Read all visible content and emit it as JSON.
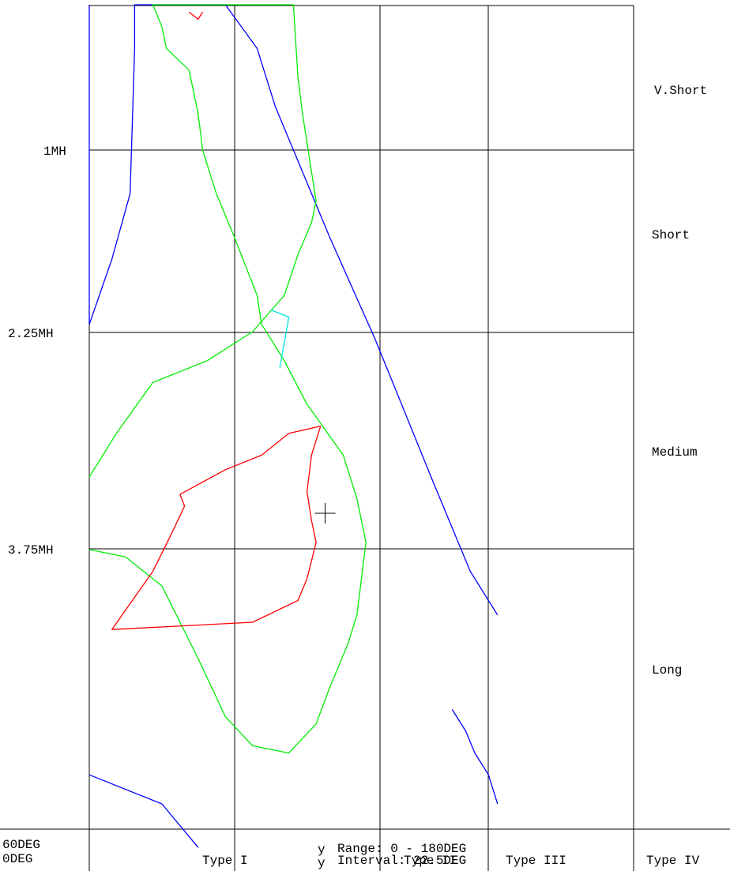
{
  "chart_data": {
    "type": "contour",
    "title": "",
    "x_axis": {
      "range_deg": [
        60,
        0
      ],
      "gridlines": [
        60,
        45,
        30,
        15,
        0
      ],
      "categories": [
        "Type I",
        "Type II",
        "Type III",
        "Type IV"
      ]
    },
    "y_axis": {
      "range_mh": [
        0,
        5
      ],
      "gridlines": [
        1,
        2.25,
        3.75
      ],
      "categories": [
        "V.Short",
        "Short",
        "Medium",
        "Long"
      ]
    },
    "ticks": {
      "x_left": [
        "60DEG",
        "0DEG"
      ],
      "y": [
        "1MH",
        "2.25MH",
        "3.75MH"
      ]
    },
    "legend_lines": [
      {
        "symbol": "y",
        "text": "Range:  0 - 180DEG"
      },
      {
        "symbol": "y",
        "text": "Interval:  22.5DEG"
      }
    ],
    "center_marker": {
      "x_deg": 34,
      "y_mh": 3.5
    },
    "contour_colors": {
      "level_1": "#0000ff",
      "level_2": "#00ee00",
      "level_3": "#ff0000",
      "level_4": "#00e5e5"
    },
    "series": [
      {
        "level": "level_1",
        "points": [
          [
            60,
            0
          ],
          [
            60,
            2.2
          ],
          [
            57.5,
            1.75
          ],
          [
            55.5,
            1.3
          ],
          [
            55,
            0.3
          ],
          [
            55,
            0
          ],
          [
            45,
            0
          ],
          [
            41.5,
            0.3
          ],
          [
            39.5,
            0.7
          ],
          [
            37.5,
            1
          ],
          [
            33.5,
            1.6
          ],
          [
            28.5,
            2.3
          ],
          [
            22,
            3.3
          ],
          [
            18,
            3.9
          ],
          [
            15,
            4.2
          ]
        ]
      },
      {
        "level": "level_1",
        "points": [
          [
            60,
            5.3
          ],
          [
            52,
            5.5
          ],
          [
            48,
            5.8
          ]
        ]
      },
      {
        "level": "level_1",
        "points": [
          [
            15,
            5.5
          ],
          [
            16,
            5.3
          ],
          [
            17.5,
            5.15
          ],
          [
            18.5,
            5.0
          ],
          [
            20,
            4.85
          ]
        ]
      },
      {
        "level": "level_2",
        "points": [
          [
            60,
            3.25
          ],
          [
            57,
            2.95
          ],
          [
            53,
            2.6
          ],
          [
            47,
            2.45
          ],
          [
            42,
            2.25
          ],
          [
            38.5,
            2.0
          ],
          [
            37,
            1.72
          ],
          [
            35.5,
            1.5
          ],
          [
            35,
            1.35
          ],
          [
            35.5,
            1.15
          ],
          [
            36.5,
            0.75
          ],
          [
            37,
            0.5
          ],
          [
            37.5,
            0
          ],
          [
            53,
            0
          ],
          [
            52,
            0.15
          ],
          [
            51.5,
            0.3
          ],
          [
            49,
            0.45
          ],
          [
            48,
            0.75
          ],
          [
            47.5,
            1.0
          ],
          [
            46,
            1.3
          ],
          [
            44,
            1.6
          ],
          [
            41.5,
            2.0
          ],
          [
            41,
            2.2
          ],
          [
            38.5,
            2.45
          ],
          [
            36,
            2.75
          ],
          [
            32,
            3.1
          ],
          [
            30.5,
            3.4
          ],
          [
            29.5,
            3.7
          ],
          [
            30,
            3.95
          ],
          [
            30.5,
            4.2
          ],
          [
            31.5,
            4.4
          ],
          [
            33.5,
            4.7
          ],
          [
            35,
            4.95
          ],
          [
            38,
            5.15
          ],
          [
            42,
            5.1
          ],
          [
            45,
            4.9
          ],
          [
            48,
            4.5
          ],
          [
            52,
            4.0
          ],
          [
            56,
            3.8
          ],
          [
            60,
            3.75
          ]
        ]
      },
      {
        "level": "level_3",
        "points": [
          [
            34.5,
            2.9
          ],
          [
            38,
            2.95
          ],
          [
            41,
            3.1
          ],
          [
            45,
            3.2
          ],
          [
            50,
            3.37
          ],
          [
            49.5,
            3.45
          ],
          [
            51,
            3.65
          ],
          [
            53,
            3.9
          ],
          [
            57.5,
            4.3
          ],
          [
            42,
            4.25
          ],
          [
            37,
            4.1
          ],
          [
            36,
            3.95
          ],
          [
            35,
            3.7
          ],
          [
            35.5,
            3.55
          ],
          [
            36,
            3.35
          ],
          [
            35.5,
            3.1
          ],
          [
            34.5,
            2.9
          ]
        ]
      },
      {
        "level": "level_3",
        "points": [
          [
            49,
            0.05
          ],
          [
            48,
            0.1
          ],
          [
            47.5,
            0.05
          ]
        ]
      },
      {
        "level": "level_4",
        "points": [
          [
            40,
            2.1
          ],
          [
            38,
            2.15
          ],
          [
            39,
            2.5
          ]
        ]
      }
    ]
  }
}
